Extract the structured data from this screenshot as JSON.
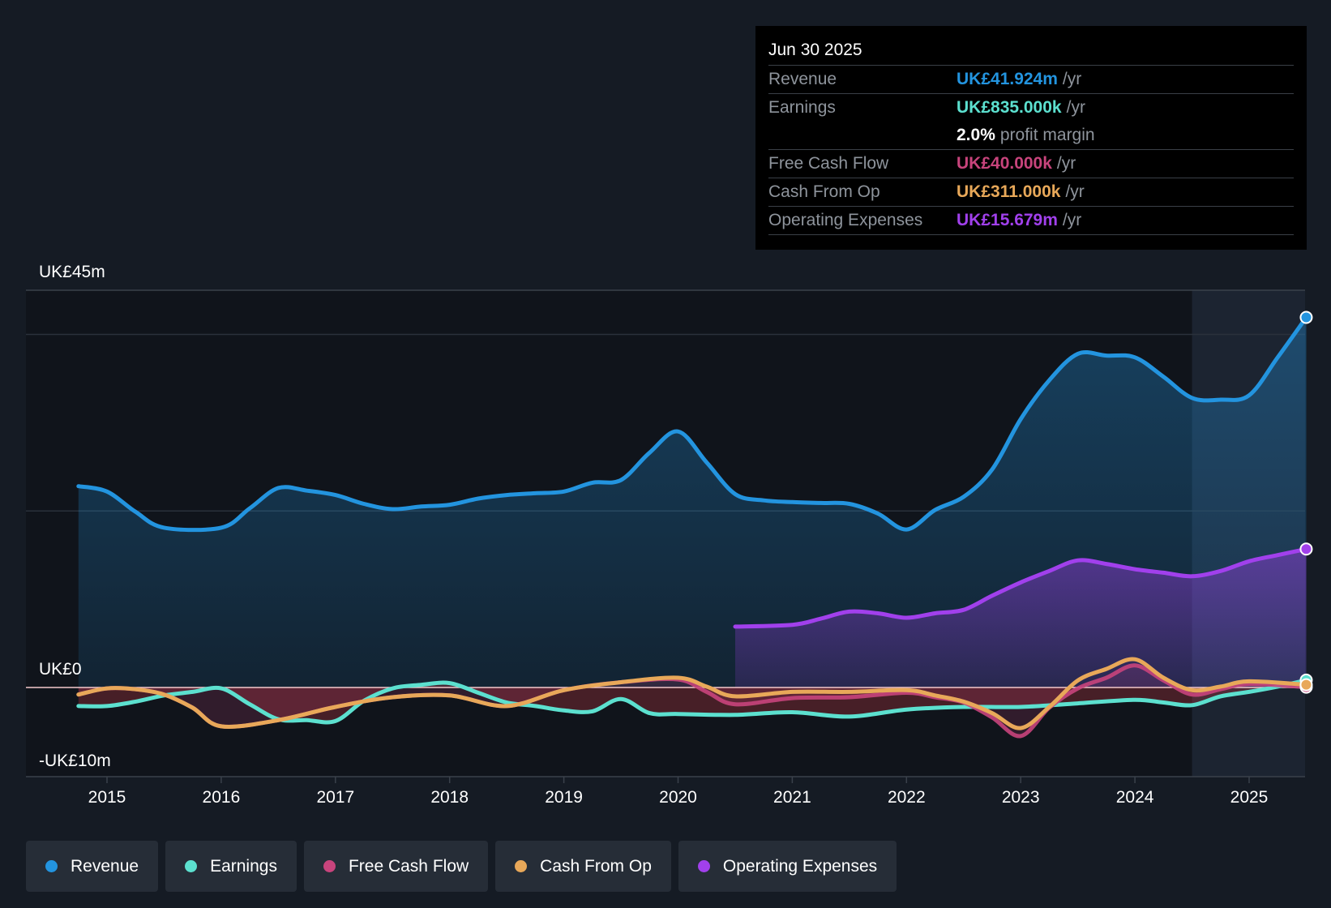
{
  "tooltip": {
    "date": "Jun 30 2025",
    "rows": [
      {
        "label": "Revenue",
        "value": "UK£41.924m",
        "unit": "/yr"
      },
      {
        "label": "Earnings",
        "value": "UK£835.000k",
        "unit": "/yr"
      },
      {
        "label": "",
        "value": "2.0%",
        "unit": "profit margin"
      },
      {
        "label": "Free Cash Flow",
        "value": "UK£40.000k",
        "unit": "/yr"
      },
      {
        "label": "Cash From Op",
        "value": "UK£311.000k",
        "unit": "/yr"
      },
      {
        "label": "Operating Expenses",
        "value": "UK£15.679m",
        "unit": "/yr"
      }
    ]
  },
  "colors": {
    "background": "#151b24",
    "revenue": "#2394df",
    "earnings": "#5ce0cf",
    "free_cash_flow": "#c8447c",
    "cash_from_op": "#e8a859",
    "operating_expenses": "#a140ec",
    "margin_value": "#ffffff"
  },
  "legend": [
    {
      "label": "Revenue",
      "color": "#2394df"
    },
    {
      "label": "Earnings",
      "color": "#5ce0cf"
    },
    {
      "label": "Free Cash Flow",
      "color": "#c8447c"
    },
    {
      "label": "Cash From Op",
      "color": "#e8a859"
    },
    {
      "label": "Operating Expenses",
      "color": "#a140ec"
    }
  ],
  "chart_data": {
    "type": "area",
    "title": "",
    "xlabel": "",
    "ylabel": "",
    "ylim": [
      -10,
      45
    ],
    "y_tick_labels": [
      "UK£45m",
      "UK£0",
      "-UK£10m"
    ],
    "y_ticks": [
      45,
      0,
      -10
    ],
    "x_tick_labels": [
      "2015",
      "2016",
      "2017",
      "2018",
      "2019",
      "2020",
      "2021",
      "2022",
      "2023",
      "2024",
      "2025"
    ],
    "x_ticks": [
      2015,
      2016,
      2017,
      2018,
      2019,
      2020,
      2021,
      2022,
      2023,
      2024,
      2025
    ],
    "xlim": [
      2014.3,
      2025.5
    ],
    "forecast_shade_start": 2024.5,
    "series": [
      {
        "name": "Revenue",
        "x": [
          2014.75,
          2015.0,
          2015.25,
          2015.5,
          2016.0,
          2016.25,
          2016.5,
          2016.75,
          2017.0,
          2017.25,
          2017.5,
          2017.75,
          2018.0,
          2018.25,
          2018.5,
          2018.75,
          2019.0,
          2019.25,
          2019.5,
          2019.75,
          2020.0,
          2020.25,
          2020.5,
          2020.75,
          2021.0,
          2021.25,
          2021.5,
          2021.75,
          2022.0,
          2022.25,
          2022.5,
          2022.75,
          2023.0,
          2023.25,
          2023.5,
          2023.75,
          2024.0,
          2024.25,
          2024.5,
          2024.75,
          2025.0,
          2025.25,
          2025.5
        ],
        "values": [
          22.8,
          22.2,
          19.9,
          18.1,
          18.1,
          20.3,
          22.6,
          22.3,
          21.8,
          20.8,
          20.2,
          20.5,
          20.7,
          21.4,
          21.8,
          22.0,
          22.2,
          23.2,
          23.5,
          26.6,
          29.0,
          25.5,
          21.9,
          21.2,
          21.0,
          20.9,
          20.8,
          19.7,
          17.9,
          20.1,
          21.6,
          24.7,
          30.4,
          34.8,
          37.8,
          37.6,
          37.4,
          35.2,
          32.8,
          32.6,
          33.1,
          37.4,
          41.924
        ]
      },
      {
        "name": "Earnings",
        "x": [
          2014.75,
          2015.0,
          2015.25,
          2015.5,
          2015.75,
          2016.0,
          2016.25,
          2016.5,
          2016.75,
          2017.0,
          2017.25,
          2017.5,
          2017.75,
          2018.0,
          2018.25,
          2018.5,
          2018.75,
          2019.0,
          2019.25,
          2019.5,
          2019.75,
          2020.0,
          2020.5,
          2021.0,
          2021.5,
          2022.0,
          2022.5,
          2023.0,
          2023.5,
          2024.0,
          2024.25,
          2024.5,
          2024.75,
          2025.0,
          2025.25,
          2025.5
        ],
        "values": [
          -2.1,
          -2.1,
          -1.6,
          -0.9,
          -0.5,
          -0.1,
          -1.9,
          -3.6,
          -3.7,
          -3.8,
          -1.5,
          -0.1,
          0.3,
          0.5,
          -0.6,
          -1.7,
          -2.1,
          -2.6,
          -2.7,
          -1.3,
          -2.9,
          -3.0,
          -3.1,
          -2.8,
          -3.3,
          -2.5,
          -2.2,
          -2.2,
          -1.8,
          -1.4,
          -1.7,
          -2.0,
          -1.0,
          -0.5,
          0.1,
          0.835
        ]
      },
      {
        "name": "Free Cash Flow",
        "x": [
          2014.75,
          2015.0,
          2015.25,
          2015.5,
          2015.75,
          2016.0,
          2016.5,
          2017.0,
          2017.5,
          2018.0,
          2018.5,
          2019.0,
          2019.5,
          2020.0,
          2020.25,
          2020.5,
          2021.0,
          2021.5,
          2022.0,
          2022.25,
          2022.5,
          2022.75,
          2023.0,
          2023.25,
          2023.5,
          2023.75,
          2024.0,
          2024.25,
          2024.5,
          2024.75,
          2025.0,
          2025.5
        ],
        "values": [
          -0.8,
          -0.1,
          -0.2,
          -0.8,
          -2.3,
          -4.4,
          -3.7,
          -2.2,
          -1.1,
          -0.9,
          -2.1,
          -0.3,
          0.6,
          0.9,
          -0.5,
          -1.9,
          -1.2,
          -1.1,
          -0.6,
          -1.1,
          -1.7,
          -3.4,
          -5.5,
          -2.3,
          -0.1,
          1.1,
          2.5,
          0.8,
          -0.8,
          -0.2,
          0.4,
          0.04
        ]
      },
      {
        "name": "Cash From Op",
        "x": [
          2014.75,
          2015.0,
          2015.25,
          2015.5,
          2015.75,
          2016.0,
          2016.5,
          2017.0,
          2017.5,
          2018.0,
          2018.5,
          2019.0,
          2019.5,
          2020.0,
          2020.25,
          2020.5,
          2021.0,
          2021.5,
          2022.0,
          2022.25,
          2022.5,
          2022.75,
          2023.0,
          2023.25,
          2023.5,
          2023.75,
          2024.0,
          2024.25,
          2024.5,
          2024.75,
          2025.0,
          2025.5
        ],
        "values": [
          -0.8,
          -0.1,
          -0.2,
          -0.8,
          -2.3,
          -4.4,
          -3.7,
          -2.2,
          -1.1,
          -0.9,
          -2.1,
          -0.3,
          0.6,
          1.1,
          0.1,
          -1.0,
          -0.5,
          -0.5,
          -0.3,
          -0.9,
          -1.6,
          -2.9,
          -4.6,
          -2.2,
          0.8,
          2.1,
          3.2,
          1.1,
          -0.3,
          0.1,
          0.7,
          0.311
        ]
      },
      {
        "name": "Operating Expenses",
        "x": [
          2020.5,
          2021.0,
          2021.25,
          2021.5,
          2021.75,
          2022.0,
          2022.25,
          2022.5,
          2022.75,
          2023.0,
          2023.25,
          2023.5,
          2023.75,
          2024.0,
          2024.25,
          2024.5,
          2024.75,
          2025.0,
          2025.25,
          2025.5
        ],
        "values": [
          6.9,
          7.1,
          7.8,
          8.6,
          8.4,
          7.9,
          8.4,
          8.8,
          10.4,
          11.9,
          13.2,
          14.4,
          14.0,
          13.4,
          13.0,
          12.6,
          13.2,
          14.3,
          15.0,
          15.679
        ]
      }
    ]
  }
}
